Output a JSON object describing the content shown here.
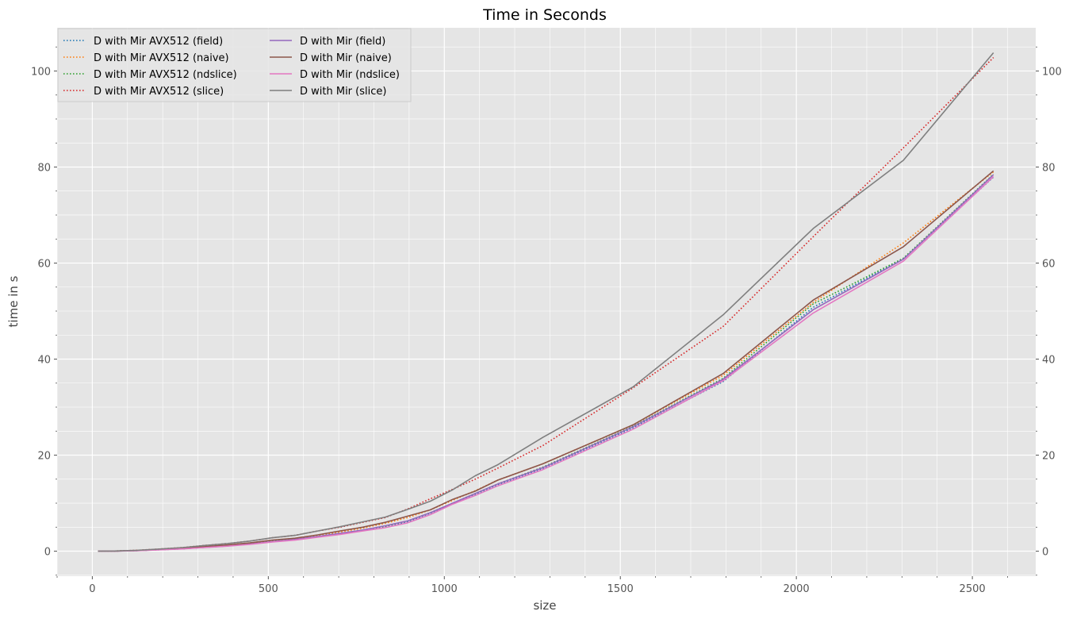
{
  "chart_data": {
    "type": "line",
    "title": "Time in Seconds",
    "xlabel": "size",
    "ylabel": "time in s",
    "xlim": [
      -100,
      2680
    ],
    "ylim": [
      -5.2,
      109
    ],
    "x_ticks": [
      0,
      500,
      1000,
      1500,
      2000,
      2500
    ],
    "y_ticks": [
      0,
      20,
      40,
      60,
      80,
      100
    ],
    "grid": true,
    "secondary_y_axis": true,
    "legend_position": "top-left",
    "legend_columns": 2,
    "x": [
      16,
      64,
      128,
      192,
      256,
      320,
      384,
      448,
      512,
      576,
      640,
      704,
      768,
      832,
      896,
      960,
      1024,
      1088,
      1152,
      1280,
      1536,
      1792,
      2048,
      2304,
      2560
    ],
    "series": [
      {
        "name": "D with Mir AVX512 (field)",
        "color": "#1f77b4",
        "dash": "dotted",
        "values": [
          0,
          0.03,
          0.12,
          0.3,
          0.5,
          0.8,
          1.1,
          1.5,
          2.0,
          2.4,
          3.0,
          3.6,
          4.3,
          5.1,
          6.1,
          7.9,
          9.9,
          11.8,
          13.8,
          17.2,
          25.7,
          35.3,
          50.8,
          60.9,
          77.9
        ]
      },
      {
        "name": "D with Mir AVX512 (naive)",
        "color": "#ff7f0e",
        "dash": "dotted",
        "values": [
          0,
          0.03,
          0.13,
          0.32,
          0.55,
          0.9,
          1.25,
          1.65,
          2.2,
          2.6,
          3.3,
          4.0,
          4.8,
          5.8,
          7.0,
          8.6,
          10.6,
          12.6,
          14.8,
          18.2,
          26.3,
          36.6,
          51.8,
          64.2,
          79.0
        ]
      },
      {
        "name": "D with Mir AVX512 (ndslice)",
        "color": "#2ca02c",
        "dash": "dotted",
        "values": [
          0,
          0.03,
          0.12,
          0.3,
          0.5,
          0.82,
          1.12,
          1.52,
          2.05,
          2.42,
          3.05,
          3.7,
          4.4,
          5.2,
          6.3,
          8.0,
          10.0,
          12.0,
          14.0,
          17.5,
          26.0,
          36.0,
          51.5,
          61.0,
          78.5
        ]
      },
      {
        "name": "D with Mir AVX512 (slice)",
        "color": "#d62728",
        "dash": "dotted",
        "values": [
          0,
          0.04,
          0.18,
          0.45,
          0.75,
          1.2,
          1.6,
          2.1,
          2.8,
          3.3,
          4.2,
          5.0,
          6.0,
          7.0,
          8.8,
          10.9,
          12.9,
          15.0,
          17.3,
          22.0,
          34.0,
          46.8,
          65.5,
          84.0,
          102.8
        ]
      },
      {
        "name": "D with Mir (field)",
        "color": "#9467bd",
        "dash": "solid",
        "values": [
          0,
          0.03,
          0.12,
          0.3,
          0.5,
          0.8,
          1.1,
          1.5,
          2.0,
          2.45,
          3.05,
          3.7,
          4.4,
          5.3,
          6.3,
          8.0,
          10.0,
          12.0,
          14.0,
          17.4,
          25.9,
          35.8,
          50.3,
          60.8,
          78.4
        ]
      },
      {
        "name": "D with Mir (naive)",
        "color": "#8c564b",
        "dash": "solid",
        "values": [
          0,
          0.03,
          0.14,
          0.34,
          0.6,
          0.95,
          1.3,
          1.72,
          2.3,
          2.7,
          3.4,
          4.2,
          5.0,
          6.0,
          7.3,
          8.6,
          10.8,
          12.5,
          14.8,
          18.2,
          26.3,
          37.0,
          52.3,
          63.4,
          79.2
        ]
      },
      {
        "name": "D with Mir (ndslice)",
        "color": "#e377c2",
        "dash": "solid",
        "values": [
          0,
          0.03,
          0.11,
          0.28,
          0.47,
          0.76,
          1.05,
          1.42,
          1.92,
          2.3,
          2.9,
          3.5,
          4.2,
          4.9,
          5.9,
          7.6,
          9.8,
          11.6,
          13.6,
          17.0,
          25.4,
          35.5,
          49.6,
          60.4,
          78.0
        ]
      },
      {
        "name": "D with Mir (slice)",
        "color": "#7f7f7f",
        "dash": "solid",
        "values": [
          0,
          0.04,
          0.18,
          0.45,
          0.75,
          1.2,
          1.6,
          2.1,
          2.8,
          3.3,
          4.2,
          5.1,
          6.1,
          7.1,
          8.7,
          10.4,
          12.8,
          15.7,
          18.0,
          23.7,
          34.2,
          49.2,
          67.2,
          81.4,
          103.8
        ]
      }
    ]
  }
}
